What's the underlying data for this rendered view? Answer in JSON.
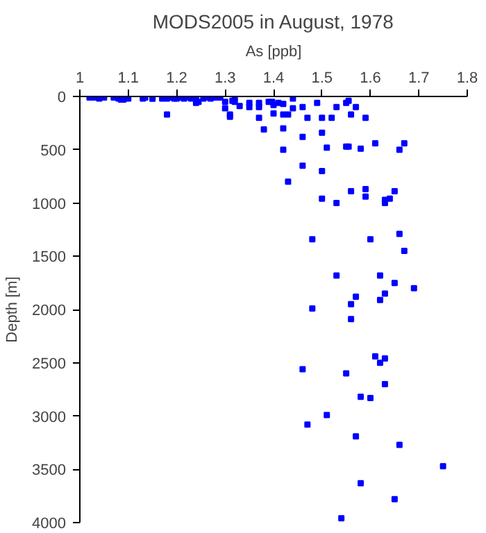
{
  "chart_data": {
    "type": "scatter",
    "title": "MODS2005 in August, 1978",
    "xlabel": "As [ppb]",
    "ylabel": "Depth [m]",
    "xlim": [
      1,
      1.8
    ],
    "xticks": [
      1,
      1.1,
      1.2,
      1.3,
      1.4,
      1.5,
      1.6,
      1.7,
      1.8
    ],
    "ylim": [
      4000,
      0
    ],
    "yticks": [
      0,
      500,
      1000,
      1500,
      2000,
      2500,
      3000,
      3500,
      4000
    ],
    "grid": false,
    "marker": "square",
    "series": [
      {
        "color": "#0000ff",
        "x": [
          1.02,
          1.03,
          1.04,
          1.05,
          1.07,
          1.08,
          1.085,
          1.09,
          1.1,
          1.13,
          1.135,
          1.15,
          1.15,
          1.17,
          1.18,
          1.19,
          1.195,
          1.2,
          1.21,
          1.215,
          1.22,
          1.23,
          1.24,
          1.245,
          1.255,
          1.26,
          1.27,
          1.28,
          1.29,
          1.315,
          1.32,
          1.18,
          1.24,
          1.3,
          1.3,
          1.31,
          1.31,
          1.32,
          1.33,
          1.35,
          1.35,
          1.37,
          1.37,
          1.37,
          1.38,
          1.39,
          1.397,
          1.4,
          1.4,
          1.41,
          1.42,
          1.42,
          1.42,
          1.42,
          1.43,
          1.44,
          1.44,
          1.46,
          1.46,
          1.46,
          1.47,
          1.49,
          1.5,
          1.5,
          1.51,
          1.52,
          1.53,
          1.55,
          1.55,
          1.555,
          1.555,
          1.56,
          1.57,
          1.58,
          1.59,
          1.61,
          1.66,
          1.67,
          1.5,
          1.43,
          1.5,
          1.53,
          1.56,
          1.59,
          1.59,
          1.63,
          1.63,
          1.64,
          1.65,
          1.48,
          1.6,
          1.66,
          1.67,
          1.53,
          1.62,
          1.65,
          1.69,
          1.57,
          1.63,
          1.62,
          1.56,
          1.48,
          1.56,
          1.61,
          1.63,
          1.62,
          1.46,
          1.55,
          1.63,
          1.58,
          1.6,
          1.51,
          1.47,
          1.57,
          1.66,
          1.75,
          1.58,
          1.65,
          1.54
        ],
        "values": [
          10,
          10,
          20,
          10,
          10,
          20,
          30,
          30,
          20,
          20,
          10,
          20,
          20,
          20,
          20,
          10,
          20,
          20,
          10,
          20,
          10,
          20,
          20,
          50,
          20,
          10,
          20,
          10,
          10,
          40,
          10,
          170,
          60,
          50,
          110,
          170,
          190,
          50,
          90,
          60,
          100,
          60,
          100,
          200,
          310,
          50,
          50,
          80,
          160,
          60,
          170,
          70,
          300,
          500,
          170,
          20,
          110,
          100,
          380,
          650,
          200,
          60,
          200,
          340,
          480,
          200,
          100,
          60,
          470,
          470,
          40,
          170,
          100,
          490,
          200,
          440,
          500,
          440,
          700,
          800,
          960,
          1000,
          890,
          870,
          940,
          970,
          1000,
          960,
          890,
          1340,
          1340,
          1290,
          1450,
          1680,
          1680,
          1750,
          1800,
          1880,
          1850,
          1910,
          1950,
          1990,
          2090,
          2440,
          2460,
          2500,
          2560,
          2600,
          2700,
          2820,
          2830,
          2990,
          3080,
          3190,
          3270,
          3470,
          3630,
          3780,
          3960
        ]
      }
    ]
  }
}
